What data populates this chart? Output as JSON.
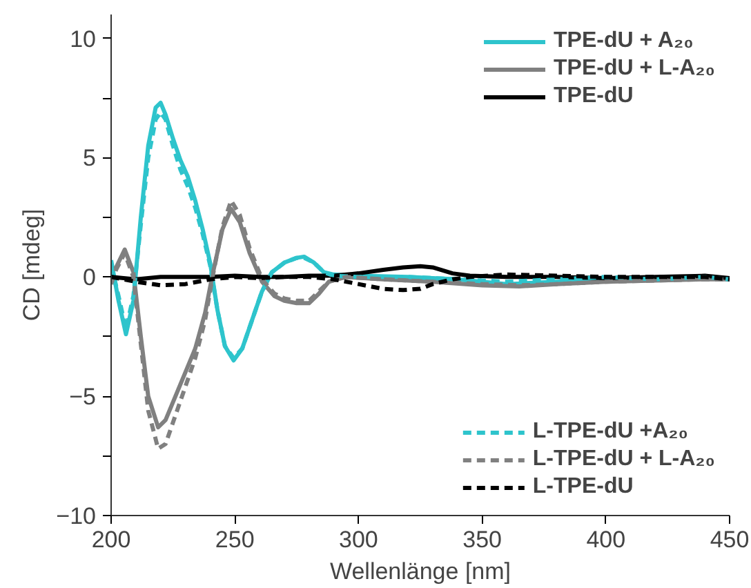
{
  "chart_data": {
    "type": "line",
    "xlabel": "Wellenlänge [nm]",
    "ylabel": "CD [mdeg]",
    "xlim": [
      200,
      450
    ],
    "ylim": [
      -10,
      11
    ],
    "xticks": [
      200,
      250,
      300,
      350,
      400,
      450
    ],
    "yticks": [
      -10,
      {
        "value": -7.5,
        "label": null
      },
      -5,
      {
        "value": -2.5,
        "label": null
      },
      0,
      {
        "value": 2.5,
        "label": null
      },
      5,
      {
        "value": 7.5,
        "label": null
      },
      10
    ],
    "grid": false,
    "legend": "right",
    "series": [
      {
        "name": "TPE-dU + A₂₀",
        "color": "#2ec4cc",
        "line_style": "solid",
        "x": [
          200,
          203,
          206,
          209,
          212,
          215,
          218,
          220,
          222,
          225,
          228,
          231,
          234,
          237,
          240,
          243,
          246,
          249.5,
          253,
          257,
          261,
          265,
          270,
          275,
          278,
          282,
          286,
          290,
          300,
          320,
          340,
          360,
          380,
          400,
          420,
          440,
          450
        ],
        "values": [
          0.7,
          -1.0,
          -2.4,
          -1.0,
          2.5,
          5.5,
          7.1,
          7.3,
          6.8,
          5.8,
          4.9,
          4.2,
          3.2,
          2.0,
          0.6,
          -1.4,
          -2.9,
          -3.5,
          -3.0,
          -1.8,
          -0.6,
          0.2,
          0.6,
          0.8,
          0.85,
          0.6,
          0.2,
          0.1,
          0.05,
          0,
          -0.1,
          -0.3,
          -0.2,
          -0.1,
          -0.1,
          0,
          -0.1
        ]
      },
      {
        "name": "TPE-dU + L-A₂₀",
        "color": "#808080",
        "line_style": "solid",
        "x": [
          200,
          202,
          205.5,
          209,
          212,
          215,
          219,
          222,
          226,
          230,
          234,
          238,
          241,
          245,
          248.5,
          252,
          256,
          261,
          266,
          270,
          275,
          280,
          284,
          288,
          295,
          310,
          330,
          350,
          365,
          380,
          400,
          420,
          440,
          450
        ],
        "values": [
          0.2,
          0.4,
          1.15,
          0.2,
          -2.5,
          -5.0,
          -6.3,
          -6.0,
          -5.0,
          -4.0,
          -3.0,
          -1.5,
          0.1,
          2.0,
          2.85,
          2.3,
          1.0,
          -0.2,
          -0.8,
          -1.0,
          -1.1,
          -1.1,
          -0.7,
          -0.2,
          0,
          -0.1,
          -0.2,
          -0.35,
          -0.4,
          -0.3,
          -0.2,
          -0.15,
          -0.1,
          -0.1
        ]
      },
      {
        "name": "TPE-dU",
        "color": "#000000",
        "line_style": "solid",
        "x": [
          200,
          210,
          220,
          230,
          240,
          250,
          260,
          270,
          280,
          290,
          300,
          310,
          318,
          325,
          330,
          338,
          345,
          360,
          380,
          400,
          420,
          440,
          450
        ],
        "values": [
          0,
          -0.1,
          0,
          0,
          0,
          0.05,
          0,
          0,
          0.05,
          0.05,
          0.15,
          0.3,
          0.4,
          0.45,
          0.4,
          0.15,
          0.05,
          0,
          0,
          -0.05,
          0,
          0.05,
          -0.05
        ]
      },
      {
        "name": "L-TPE-dU +A₂₀",
        "color": "#2ec4cc",
        "line_style": "dashed",
        "x": [
          200,
          203,
          206,
          209,
          212,
          215,
          218,
          220,
          222,
          225,
          228,
          231,
          234,
          237,
          240,
          243,
          246,
          249.5,
          253,
          257,
          261,
          265,
          270,
          275,
          278,
          282,
          286,
          290,
          300,
          320,
          340,
          360,
          380,
          400,
          420,
          440,
          450
        ],
        "values": [
          0.5,
          -0.8,
          -2.2,
          -0.8,
          2.2,
          5.0,
          6.6,
          6.9,
          6.6,
          5.5,
          4.5,
          3.8,
          2.9,
          1.8,
          0.5,
          -1.4,
          -2.9,
          -3.4,
          -3.0,
          -1.8,
          -0.6,
          0.2,
          0.6,
          0.8,
          0.8,
          0.6,
          0.2,
          0.05,
          0,
          0,
          -0.1,
          -0.2,
          -0.1,
          0,
          -0.1,
          0,
          -0.1
        ]
      },
      {
        "name": "L-TPE-dU + L-A₂₀",
        "color": "#808080",
        "line_style": "dashed",
        "x": [
          200,
          202,
          205.5,
          209,
          212,
          215,
          219,
          222,
          226,
          230,
          234,
          238,
          241,
          245,
          248.5,
          252,
          256,
          261,
          266,
          270,
          275,
          280,
          284,
          288,
          295,
          310,
          330,
          350,
          365,
          380,
          400,
          420,
          440,
          450
        ],
        "values": [
          -0.3,
          0.3,
          1.0,
          0.0,
          -2.8,
          -5.6,
          -7.2,
          -7.0,
          -5.8,
          -4.6,
          -3.4,
          -1.8,
          0.0,
          2.1,
          3.2,
          2.6,
          1.2,
          -0.1,
          -0.7,
          -0.9,
          -1.0,
          -1.0,
          -0.6,
          -0.2,
          0,
          -0.1,
          -0.2,
          -0.3,
          -0.35,
          -0.3,
          -0.2,
          -0.15,
          -0.1,
          -0.1
        ]
      },
      {
        "name": "L-TPE-dU",
        "color": "#000000",
        "line_style": "dashed",
        "x": [
          200,
          210,
          220,
          230,
          240,
          250,
          260,
          270,
          280,
          290,
          300,
          310,
          318,
          325,
          330,
          338,
          345,
          360,
          380,
          400,
          420,
          440,
          450
        ],
        "values": [
          0,
          -0.2,
          -0.35,
          -0.3,
          -0.1,
          0,
          -0.05,
          0,
          0,
          -0.1,
          -0.3,
          -0.5,
          -0.55,
          -0.5,
          -0.3,
          -0.1,
          0,
          0.1,
          0.05,
          0,
          0,
          0,
          -0.1
        ]
      }
    ]
  }
}
